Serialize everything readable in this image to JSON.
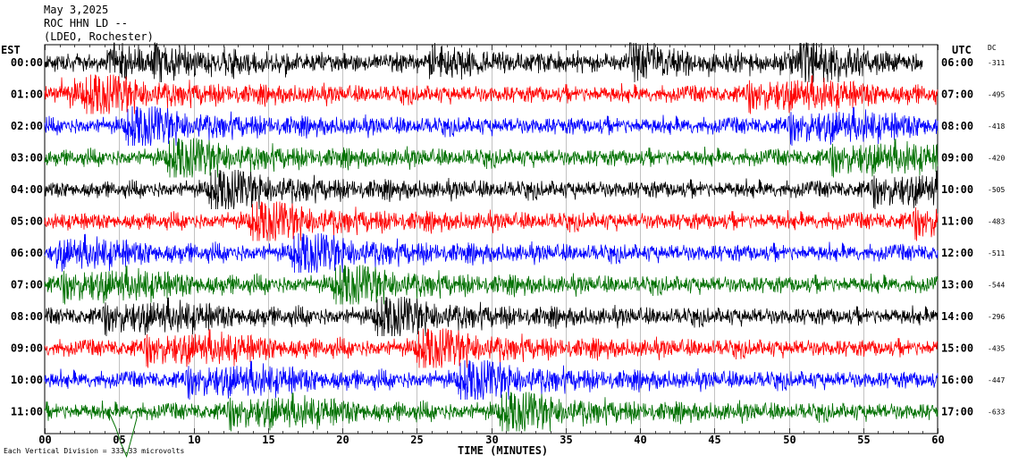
{
  "header": {
    "date": "May 3,2025",
    "station": "ROC HHN LD --",
    "location": "(LDEO, Rochester)"
  },
  "left_timezone": "EST",
  "right_timezone": "UTC",
  "dc_header": "DC",
  "footer_note": "Each Vertical Division = 333.33 microvolts",
  "chart_data": {
    "type": "line",
    "title": "",
    "xlabel": "TIME (MINUTES)",
    "ylabel": "",
    "xlim": [
      0,
      60
    ],
    "x_ticks": [
      "00",
      "05",
      "10",
      "15",
      "20",
      "25",
      "30",
      "35",
      "40",
      "45",
      "50",
      "55",
      "60"
    ],
    "grid": "vertical",
    "rows": [
      {
        "est": "00:00",
        "utc": "06:00",
        "dc": "-311",
        "color": "#000000",
        "end_minute": 59
      },
      {
        "est": "01:00",
        "utc": "07:00",
        "dc": "-495",
        "color": "#ff0000",
        "end_minute": 60
      },
      {
        "est": "02:00",
        "utc": "08:00",
        "dc": "-418",
        "color": "#0000ff",
        "end_minute": 60
      },
      {
        "est": "03:00",
        "utc": "09:00",
        "dc": "-420",
        "color": "#007000",
        "end_minute": 60
      },
      {
        "est": "04:00",
        "utc": "10:00",
        "dc": "-505",
        "color": "#000000",
        "end_minute": 60
      },
      {
        "est": "05:00",
        "utc": "11:00",
        "dc": "-483",
        "color": "#ff0000",
        "end_minute": 60
      },
      {
        "est": "06:00",
        "utc": "12:00",
        "dc": "-511",
        "color": "#0000ff",
        "end_minute": 60
      },
      {
        "est": "07:00",
        "utc": "13:00",
        "dc": "-544",
        "color": "#007000",
        "end_minute": 60
      },
      {
        "est": "08:00",
        "utc": "14:00",
        "dc": "-296",
        "color": "#000000",
        "end_minute": 60
      },
      {
        "est": "09:00",
        "utc": "15:00",
        "dc": "-435",
        "color": "#ff0000",
        "end_minute": 60
      },
      {
        "est": "10:00",
        "utc": "16:00",
        "dc": "-447",
        "color": "#0000ff",
        "end_minute": 60
      },
      {
        "est": "11:00",
        "utc": "17:00",
        "dc": "-633",
        "color": "#007000",
        "end_minute": 60
      }
    ]
  }
}
